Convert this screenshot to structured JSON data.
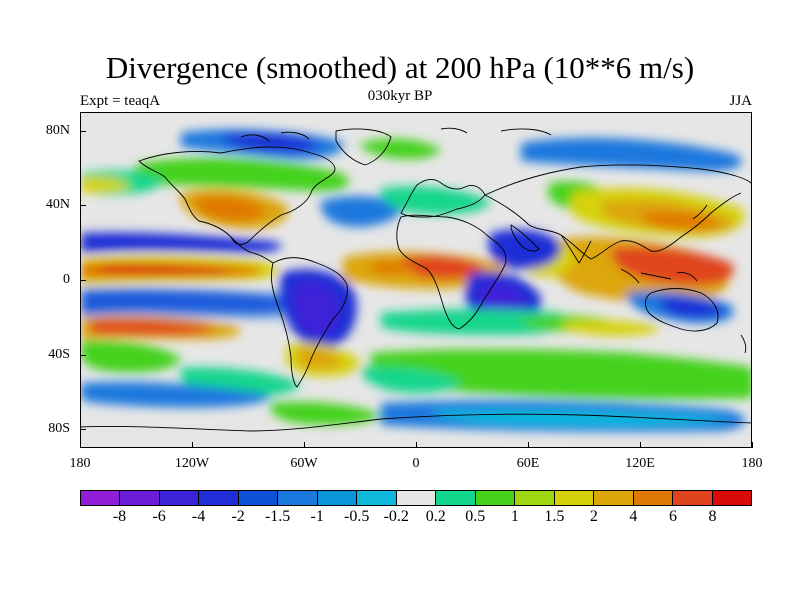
{
  "title": "Divergence (smoothed) at 200 hPa (10**6 m/s)",
  "experiment_label": "Expt = teaqA",
  "period_label": "030kyr BP",
  "season_label": "JJA",
  "lat_ticks": [
    {
      "value": 80,
      "label": "80N"
    },
    {
      "value": 40,
      "label": "40N"
    },
    {
      "value": 0,
      "label": "0"
    },
    {
      "value": -40,
      "label": "40S"
    },
    {
      "value": -80,
      "label": "80S"
    }
  ],
  "lon_ticks": [
    {
      "value": -180,
      "label": "180"
    },
    {
      "value": -120,
      "label": "120W"
    },
    {
      "value": -60,
      "label": "60W"
    },
    {
      "value": 0,
      "label": "0"
    },
    {
      "value": 60,
      "label": "60E"
    },
    {
      "value": 120,
      "label": "120E"
    },
    {
      "value": 180,
      "label": "180"
    }
  ],
  "colorbar": {
    "colors": [
      "#8f1ed6",
      "#6a1cd8",
      "#3c23d8",
      "#1f2ed6",
      "#0e52d8",
      "#1a78de",
      "#0a95d8",
      "#10b8dc",
      "#e6e6e6",
      "#12d68c",
      "#44d21a",
      "#9ed610",
      "#d6d20a",
      "#dca60a",
      "#e07806",
      "#e0441c",
      "#d80a0a"
    ],
    "labels": [
      "-8",
      "-6",
      "-4",
      "-2",
      "-1.5",
      "-1",
      "-0.5",
      "-0.2",
      "0.2",
      "0.5",
      "1",
      "1.5",
      "2",
      "4",
      "6",
      "8"
    ]
  }
}
